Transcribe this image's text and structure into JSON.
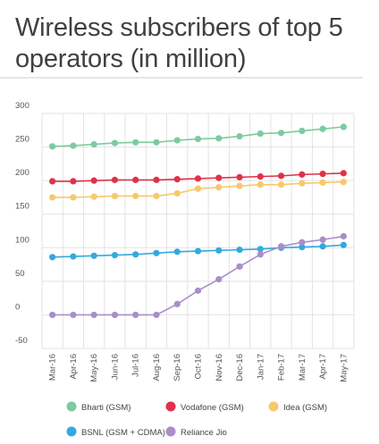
{
  "title": "Wireless subscribers of top 5 operators (in million)",
  "chart_data": {
    "type": "line",
    "title": "Wireless subscribers of top 5 operators (in million)",
    "x": [
      "Mar-16",
      "Apr-16",
      "May-16",
      "Jun-16",
      "Jul-16",
      "Aug-16",
      "Sep-16",
      "Oct-16",
      "Nov-16",
      "Dec-16",
      "Jan-17",
      "Feb-17",
      "Mar-17",
      "Apr-17",
      "May-17"
    ],
    "ylim": [
      -50,
      300
    ],
    "yticks": [
      300,
      250,
      200,
      150,
      100,
      50,
      0,
      -50
    ],
    "grid": true,
    "legend_position": "bottom",
    "series": [
      {
        "name": "Bharti (GSM)",
        "color": "#7ccba0",
        "values": [
          251,
          252,
          254,
          256,
          257,
          257,
          260,
          262,
          263,
          266,
          270,
          271,
          274,
          277,
          280
        ]
      },
      {
        "name": "Vodafone (GSM)",
        "color": "#e0314b",
        "values": [
          199,
          199,
          200,
          201,
          201,
          201,
          202,
          203,
          204,
          205,
          206,
          207,
          209,
          210,
          211
        ]
      },
      {
        "name": "Idea (GSM)",
        "color": "#f7c96a",
        "values": [
          175,
          175,
          176,
          177,
          177,
          177,
          181,
          188,
          190,
          192,
          194,
          194,
          196,
          197,
          198
        ]
      },
      {
        "name": "BSNL (GSM + CDMA)",
        "color": "#34a9de",
        "values": [
          86,
          87,
          88,
          89,
          90,
          92,
          94,
          95,
          96,
          97,
          98,
          100,
          101,
          102,
          104
        ]
      },
      {
        "name": "Reliance Jio",
        "color": "#a98ec9",
        "values": [
          0,
          0,
          0,
          0,
          0,
          0,
          16,
          36,
          53,
          72,
          90,
          102,
          108,
          112,
          117
        ]
      }
    ]
  }
}
